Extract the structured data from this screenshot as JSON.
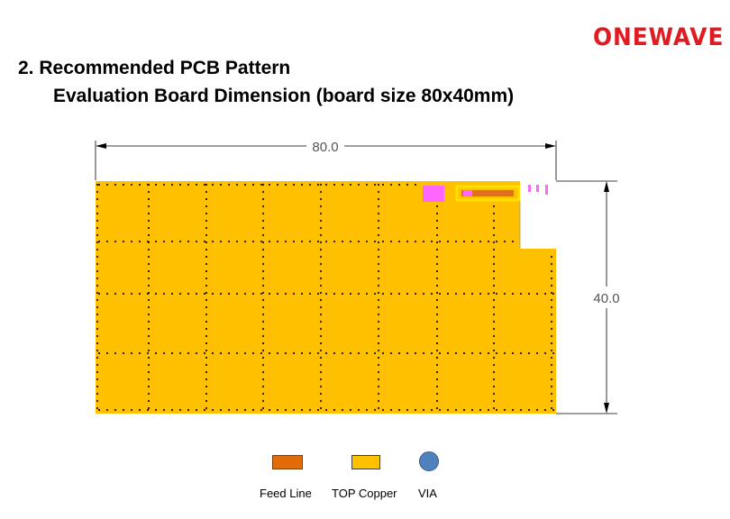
{
  "logo": "ONEWAVE",
  "heading": "2.  Recommended PCB Pattern",
  "subheading": "Evaluation Board Dimension (board size 80x40mm)",
  "drawing": {
    "width_label": "80.0",
    "height_label": "40.0",
    "colors": {
      "board": "#ffc000",
      "top_copper_outline": "#ffd700",
      "feed_line": "#e07020",
      "pad": "#ff66ff",
      "via": "#1a1a1a",
      "dimension_line": "#000000"
    }
  },
  "legend": {
    "feed_line": "Feed Line",
    "top_copper": "TOP Copper",
    "via": "VIA",
    "colors": {
      "feed_line_fill": "#e36c0a",
      "feed_line_border": "#7f3f00",
      "top_copper_fill": "#ffc000",
      "top_copper_border": "#404040",
      "via_fill": "#4f81bd",
      "via_border": "#385d8a"
    }
  }
}
